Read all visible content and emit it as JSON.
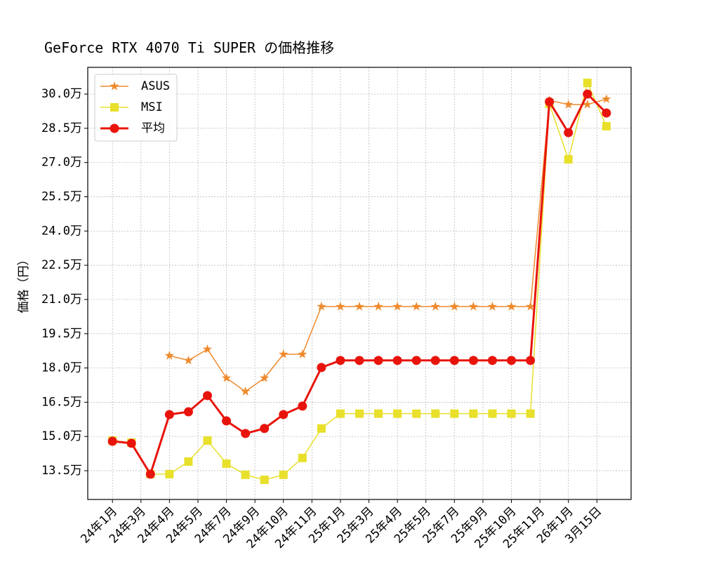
{
  "chart_data": {
    "type": "line",
    "title": "GeForce RTX 4070 Ti SUPER の価格推移",
    "y_label": "価格（円）",
    "x": [
      0,
      1,
      2,
      3,
      4,
      5,
      6,
      7,
      8,
      9,
      10,
      11,
      12,
      13,
      14,
      15,
      16,
      17,
      18,
      19,
      20,
      21,
      22,
      23,
      24,
      25,
      26
    ],
    "xlim": [
      -1.3,
      27.3
    ],
    "xticks": [
      {
        "value": 0,
        "label": "24年1月"
      },
      {
        "value": 1.5,
        "label": "24年3月"
      },
      {
        "value": 3,
        "label": "24年4月"
      },
      {
        "value": 4.5,
        "label": "24年5月"
      },
      {
        "value": 6,
        "label": "24年7月"
      },
      {
        "value": 7.5,
        "label": "24年9月"
      },
      {
        "value": 9,
        "label": "24年10月"
      },
      {
        "value": 10.5,
        "label": "24年11月"
      },
      {
        "value": 12,
        "label": "25年1月"
      },
      {
        "value": 13.5,
        "label": "25年3月"
      },
      {
        "value": 15,
        "label": "25年4月"
      },
      {
        "value": 16.5,
        "label": "25年5月"
      },
      {
        "value": 18,
        "label": "25年7月"
      },
      {
        "value": 19.5,
        "label": "25年9月"
      },
      {
        "value": 21,
        "label": "25年10月"
      },
      {
        "value": 22.5,
        "label": "25年11月"
      },
      {
        "value": 24,
        "label": "26年1月"
      },
      {
        "value": 25.5,
        "label": "3月15日"
      }
    ],
    "ylim": [
      12.24,
      31.17
    ],
    "yticks": [
      {
        "value": 13.5,
        "label": "13.5万"
      },
      {
        "value": 15,
        "label": "15.0万"
      },
      {
        "value": 16.5,
        "label": "16.5万"
      },
      {
        "value": 18,
        "label": "18.0万"
      },
      {
        "value": 19.5,
        "label": "19.5万"
      },
      {
        "value": 21,
        "label": "21.0万"
      },
      {
        "value": 22.5,
        "label": "22.5万"
      },
      {
        "value": 24,
        "label": "24.0万"
      },
      {
        "value": 25.5,
        "label": "25.5万"
      },
      {
        "value": 27,
        "label": "27.0万"
      },
      {
        "value": 28.5,
        "label": "28.5万"
      },
      {
        "value": 30,
        "label": "30.0万"
      }
    ],
    "grid": true,
    "legend": "upper left",
    "series": [
      {
        "name": "ASUS",
        "color": "#ee8a2d",
        "marker": "star",
        "values": [
          null,
          null,
          null,
          18.54,
          18.33,
          18.82,
          17.56,
          16.97,
          17.56,
          18.6,
          18.6,
          20.69,
          20.69,
          20.69,
          20.69,
          20.69,
          20.69,
          20.69,
          20.69,
          20.69,
          20.69,
          20.69,
          20.69,
          29.72,
          29.54,
          29.54,
          29.78
        ]
      },
      {
        "name": "MSI",
        "color": "#e8e02a",
        "marker": "square",
        "values": [
          14.82,
          14.73,
          13.35,
          13.35,
          13.9,
          14.82,
          13.81,
          13.32,
          13.1,
          13.32,
          14.06,
          15.35,
          16.0,
          16.0,
          16.0,
          16.0,
          16.0,
          16.0,
          16.0,
          16.0,
          16.0,
          16.0,
          16.0,
          29.57,
          27.14,
          30.49,
          28.59
        ]
      },
      {
        "name": "平均",
        "color": "#e8140c",
        "marker": "circle",
        "values": [
          14.79,
          14.7,
          13.35,
          15.96,
          16.08,
          16.79,
          15.68,
          15.13,
          15.35,
          15.96,
          16.33,
          18.02,
          18.33,
          18.33,
          18.33,
          18.33,
          18.33,
          18.33,
          18.33,
          18.33,
          18.33,
          18.33,
          18.33,
          29.66,
          28.31,
          30.0,
          29.17
        ]
      }
    ]
  }
}
